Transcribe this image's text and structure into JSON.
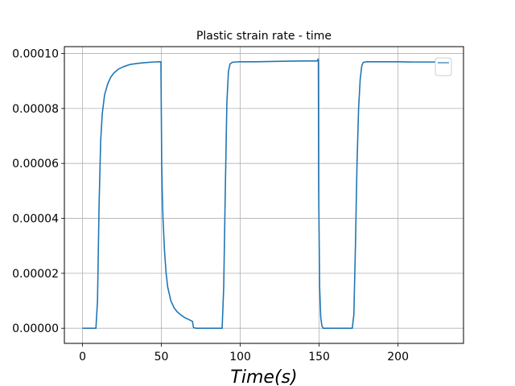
{
  "chart_data": {
    "type": "line",
    "title": "Plastic strain rate - time",
    "xlabel": "Time(s)",
    "ylabel": "",
    "xlim": [
      -11.5,
      241.5
    ],
    "ylim": [
      -5.5e-06,
      0.0001025
    ],
    "x_ticks": [
      0,
      50,
      100,
      150,
      200
    ],
    "x_tick_labels": [
      "0",
      "50",
      "100",
      "150",
      "200"
    ],
    "y_ticks": [
      0,
      2e-05,
      4e-05,
      6e-05,
      8e-05,
      0.0001
    ],
    "y_tick_labels": [
      "0.00000",
      "0.00002",
      "0.00004",
      "0.00006",
      "0.00008",
      "0.00010"
    ],
    "grid": true,
    "legend": "top-right (empty)",
    "series": [
      {
        "color": "#1f77b4",
        "x": [
          0,
          8.5,
          9.5,
          10.5,
          11.5,
          12.5,
          14,
          16,
          18,
          20,
          23,
          26,
          30,
          35,
          40,
          45,
          49.7,
          50.2,
          50.6,
          51,
          52,
          53,
          54,
          56,
          58,
          60,
          62.5,
          65,
          68,
          69.7,
          70.3,
          72,
          80,
          88.5,
          89.5,
          90.5,
          91.5,
          92.5,
          93.5,
          95,
          97,
          100,
          110,
          120,
          130,
          140,
          149,
          149.3,
          149.5,
          149.7,
          150.3,
          151,
          151.7,
          152.5,
          153.5,
          160,
          171,
          172,
          173,
          174,
          175,
          176,
          177,
          178,
          180,
          190,
          200,
          210,
          220,
          229
        ],
        "y": [
          0,
          0,
          1e-05,
          4.5e-05,
          6.8e-05,
          7.8e-05,
          8.5e-05,
          8.9e-05,
          9.15e-05,
          9.3e-05,
          9.44e-05,
          9.52e-05,
          9.6e-05,
          9.64e-05,
          9.67e-05,
          9.69e-05,
          9.7e-05,
          6e-05,
          4.8e-05,
          4e-05,
          2.8e-05,
          2e-05,
          1.5e-05,
          1e-05,
          7.5e-06,
          6e-06,
          4.8e-06,
          3.8e-06,
          3e-06,
          2.5e-06,
          3e-07,
          0,
          0,
          0,
          1.5e-05,
          5e-05,
          8.2e-05,
          9.35e-05,
          9.62e-05,
          9.68e-05,
          9.69e-05,
          9.7e-05,
          9.7e-05,
          9.71e-05,
          9.72e-05,
          9.73e-05,
          9.73e-05,
          9.8e-05,
          9.73e-05,
          5e-05,
          1.5e-05,
          4e-06,
          1e-06,
          0,
          0,
          0,
          0,
          5e-06,
          3e-05,
          6e-05,
          8e-05,
          9.05e-05,
          9.55e-05,
          9.68e-05,
          9.7e-05,
          9.7e-05,
          9.7e-05,
          9.69e-05,
          9.69e-05,
          9.69e-05
        ]
      }
    ]
  }
}
